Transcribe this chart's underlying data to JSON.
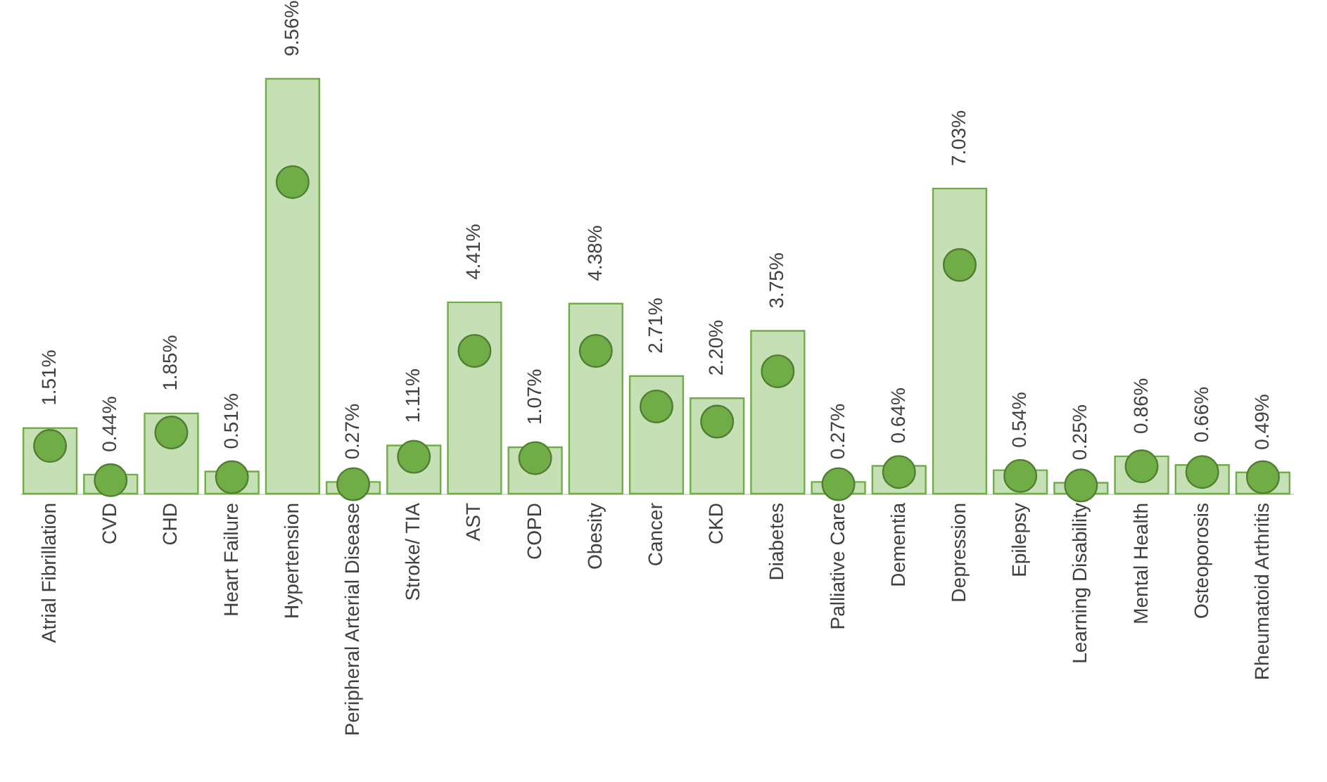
{
  "chart_data": {
    "type": "bar",
    "categories": [
      "Atrial Fibrillation",
      "CVD",
      "CHD",
      "Heart Failure",
      "Hypertension",
      "Peripheral Arterial Disease",
      "Stroke/ TIA",
      "AST",
      "COPD",
      "Obesity",
      "Cancer",
      "CKD",
      "Diabetes",
      "Palliative Care",
      "Dementia",
      "Depression",
      "Epilepsy",
      "Learning Disability",
      "Mental Health",
      "Osteoporosis",
      "Rheumatoid Arthritis"
    ],
    "series": [
      {
        "color": "#c5e0b4",
        "values": [
          1.51,
          0.44,
          1.85,
          0.51,
          9.56,
          0.27,
          1.11,
          4.41,
          1.07,
          4.38,
          2.71,
          2.2,
          3.75,
          0.27,
          0.64,
          7.03,
          0.54,
          0.25,
          0.86,
          0.66,
          0.49
        ],
        "value_labels": [
          "1.51%",
          "0.44%",
          "1.85%",
          "0.51%",
          "9.56%",
          "0.27%",
          "1.11%",
          "4.41%",
          "1.07%",
          "4.38%",
          "2.71%",
          "2.20%",
          "3.75%",
          "0.27%",
          "0.64%",
          "7.03%",
          "0.54%",
          "0.25%",
          "0.86%",
          "0.66%",
          "0.49%"
        ]
      },
      {
        "type": "scatter",
        "color": "#70ad47",
        "values": [
          1.1,
          0.31,
          1.41,
          0.38,
          7.18,
          0.22,
          0.85,
          3.29,
          0.82,
          3.29,
          2.01,
          1.66,
          2.82,
          0.22,
          0.5,
          5.27,
          0.41,
          0.19,
          0.63,
          0.5,
          0.38
        ]
      }
    ],
    "marker": "circle"
  }
}
